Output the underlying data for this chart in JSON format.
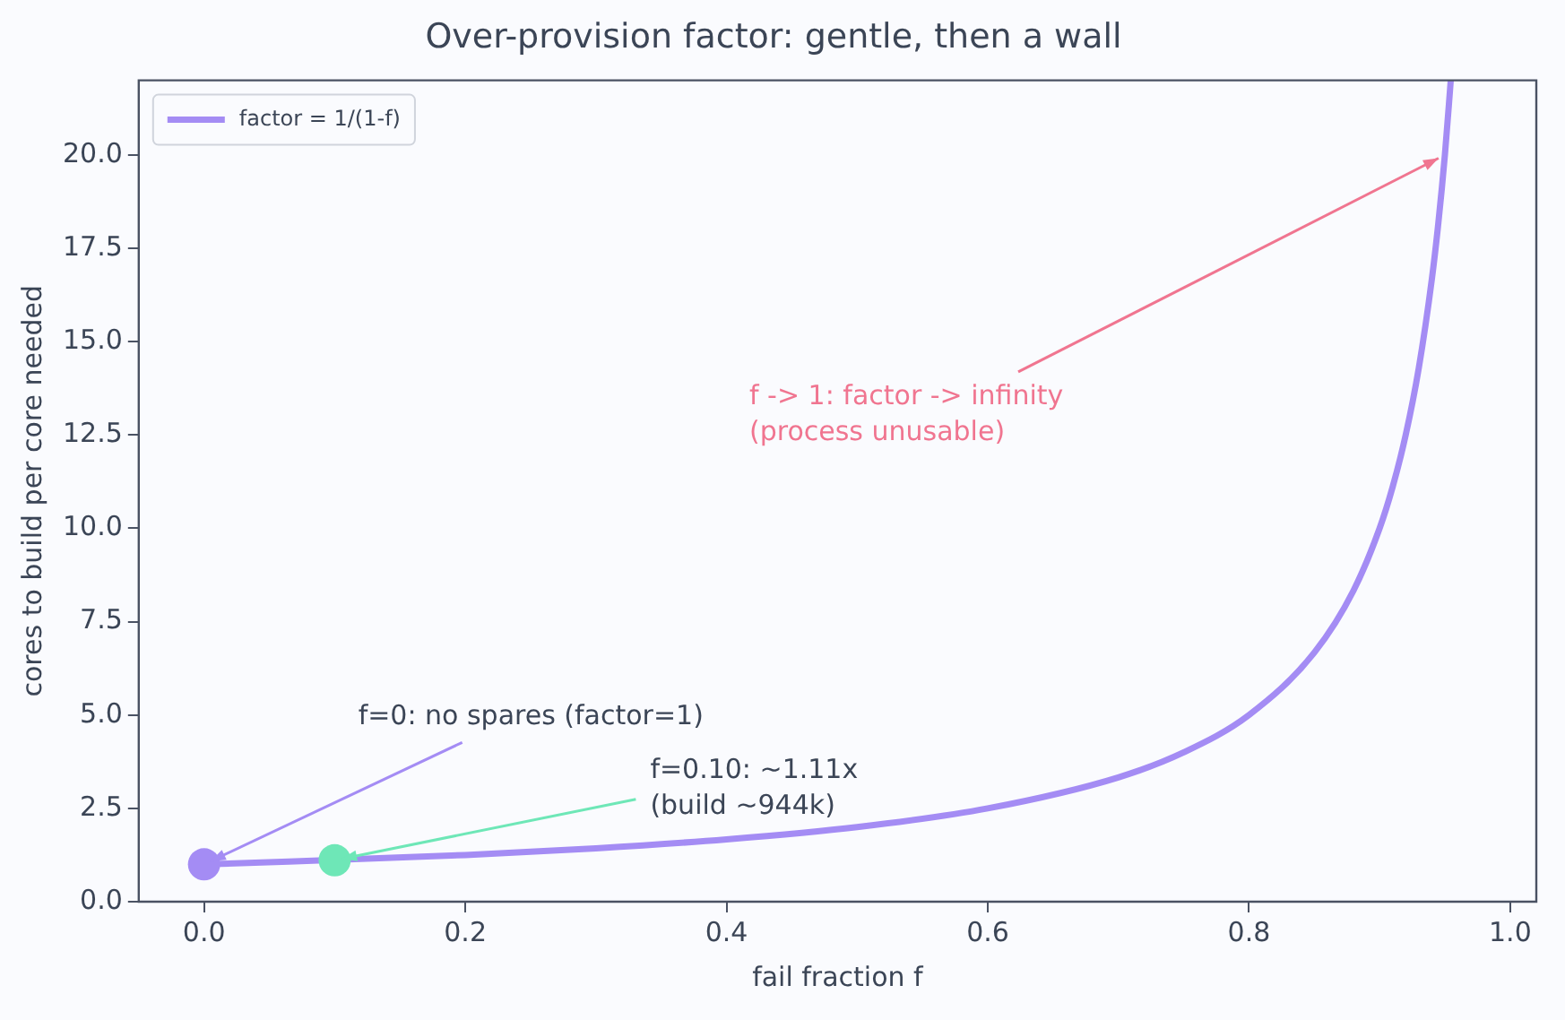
{
  "chart_data": {
    "type": "line",
    "title": "Over-provision factor: gentle, then a wall",
    "xlabel": "fail fraction f",
    "ylabel": "cores to build per core needed",
    "series": [
      {
        "name": "factor = 1/(1-f)",
        "color": "#a48cf4",
        "x": [
          0,
          0.2,
          0.3,
          0.4,
          0.5,
          0.6,
          0.7,
          0.75,
          0.8,
          0.85,
          0.88,
          0.9,
          0.91,
          0.92,
          0.93,
          0.94,
          0.945,
          0.95,
          0.9545
        ],
        "values": [
          1,
          1.25,
          1.43,
          1.67,
          2,
          2.5,
          3.33,
          4,
          5,
          6.67,
          8.33,
          10,
          11.11,
          12.5,
          14.29,
          16.67,
          18.18,
          20,
          22
        ],
        "marker": "none"
      },
      {
        "type": "scatter",
        "color": "#a48cf4",
        "x": [
          0
        ],
        "values": [
          1
        ],
        "marker": "circle"
      },
      {
        "type": "scatter",
        "color": "#6ee7b7",
        "x": [
          0.1
        ],
        "values": [
          1.11
        ],
        "marker": "circle"
      }
    ],
    "annotations": [
      {
        "text": "f=0: no spares (factor=1)",
        "x": 0,
        "y": 1
      },
      {
        "text": "f=0.10: ~1.11x\n(build ~944k)",
        "x": 0.1,
        "y": 1.11
      },
      {
        "text": "f -> 1: factor -> infinity\n(process unusable)",
        "x": 0.95,
        "y": 20
      }
    ],
    "xlim": [
      -0.05,
      1.02
    ],
    "xticks": [
      {
        "value": 0,
        "label": "0.0"
      },
      {
        "value": 0.2,
        "label": "0.2"
      },
      {
        "value": 0.4,
        "label": "0.4"
      },
      {
        "value": 0.6,
        "label": "0.6"
      },
      {
        "value": 0.8,
        "label": "0.8"
      },
      {
        "value": 1,
        "label": "1.0"
      }
    ],
    "ylim": [
      0,
      22
    ],
    "yticks": [
      {
        "value": 0,
        "label": "0.0"
      },
      {
        "value": 2.5,
        "label": "2.5"
      },
      {
        "value": 5,
        "label": "5.0"
      },
      {
        "value": 7.5,
        "label": "7.5"
      },
      {
        "value": 10,
        "label": "10.0"
      },
      {
        "value": 12.5,
        "label": "12.5"
      },
      {
        "value": 15,
        "label": "15.0"
      },
      {
        "value": 17.5,
        "label": "17.5"
      },
      {
        "value": 20,
        "label": "20.0"
      }
    ],
    "grid": false,
    "legend": "top left",
    "line_style": "solid"
  }
}
